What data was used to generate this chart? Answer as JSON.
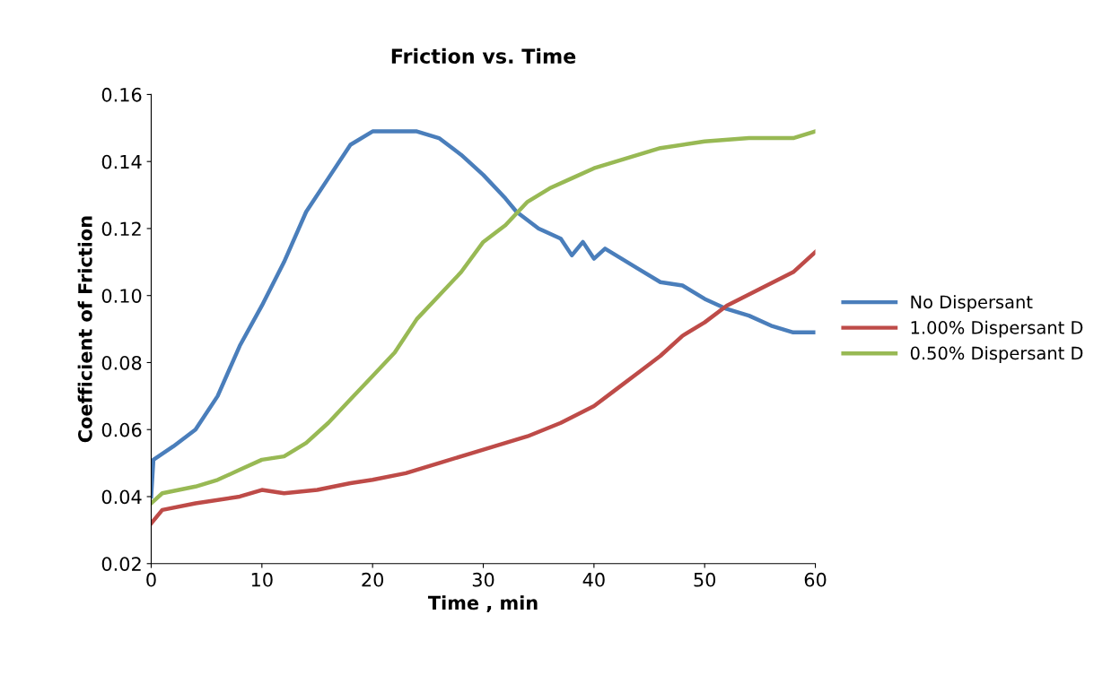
{
  "chart_data": {
    "type": "line",
    "title": "Friction vs. Time",
    "xlabel": "Time , min",
    "ylabel": "Coefficient of Friction",
    "xlim": [
      0,
      60
    ],
    "xticks": [
      0,
      10,
      20,
      30,
      40,
      50,
      60
    ],
    "ylim": [
      0.02,
      0.16
    ],
    "yticks": [
      {
        "value": 0.02,
        "label": "0.02"
      },
      {
        "value": 0.04,
        "label": "0.04"
      },
      {
        "value": 0.06,
        "label": "0.06"
      },
      {
        "value": 0.08,
        "label": "0.08"
      },
      {
        "value": 0.1,
        "label": "0.10"
      },
      {
        "value": 0.12,
        "label": "0.12"
      },
      {
        "value": 0.14,
        "label": "0.14"
      },
      {
        "value": 0.16,
        "label": "0.16"
      }
    ],
    "grid": false,
    "legend": "right",
    "marker": "none",
    "line_style": "solid",
    "series": [
      {
        "name": "No Dispersant",
        "color": "#4a7ebb",
        "x": [
          0,
          0.2,
          2,
          4,
          6,
          8,
          10,
          12,
          14,
          16,
          18,
          20,
          22,
          24,
          26,
          28,
          30,
          32,
          33,
          35,
          37,
          38,
          39,
          40,
          41,
          42,
          44,
          46,
          48,
          50,
          52,
          54,
          56,
          58,
          60
        ],
        "values": [
          0.04,
          0.051,
          0.055,
          0.06,
          0.07,
          0.085,
          0.097,
          0.11,
          0.125,
          0.135,
          0.145,
          0.149,
          0.149,
          0.149,
          0.147,
          0.142,
          0.136,
          0.129,
          0.125,
          0.12,
          0.117,
          0.112,
          0.116,
          0.111,
          0.114,
          0.112,
          0.108,
          0.104,
          0.103,
          0.099,
          0.096,
          0.094,
          0.091,
          0.089,
          0.089
        ]
      },
      {
        "name": "1.00% Dispersant D",
        "color": "#be4b48",
        "x": [
          0,
          1,
          4,
          8,
          10,
          12,
          15,
          18,
          20,
          23,
          26,
          29,
          31,
          34,
          37,
          40,
          42,
          44,
          46,
          48,
          50,
          52,
          55,
          58,
          60
        ],
        "values": [
          0.032,
          0.036,
          0.038,
          0.04,
          0.042,
          0.041,
          0.042,
          0.044,
          0.045,
          0.047,
          0.05,
          0.053,
          0.055,
          0.058,
          0.062,
          0.067,
          0.072,
          0.077,
          0.082,
          0.088,
          0.092,
          0.097,
          0.102,
          0.107,
          0.113
        ]
      },
      {
        "name": "0.50% Dispersant D",
        "color": "#98b954",
        "x": [
          0,
          1,
          4,
          6,
          8,
          10,
          12,
          14,
          16,
          18,
          20,
          22,
          24,
          26,
          28,
          30,
          32,
          34,
          36,
          38,
          40,
          42,
          44,
          46,
          50,
          54,
          58,
          60
        ],
        "values": [
          0.038,
          0.041,
          0.043,
          0.045,
          0.048,
          0.051,
          0.052,
          0.056,
          0.062,
          0.069,
          0.076,
          0.083,
          0.093,
          0.1,
          0.107,
          0.116,
          0.121,
          0.128,
          0.132,
          0.135,
          0.138,
          0.14,
          0.142,
          0.144,
          0.146,
          0.147,
          0.147,
          0.149
        ]
      }
    ]
  }
}
